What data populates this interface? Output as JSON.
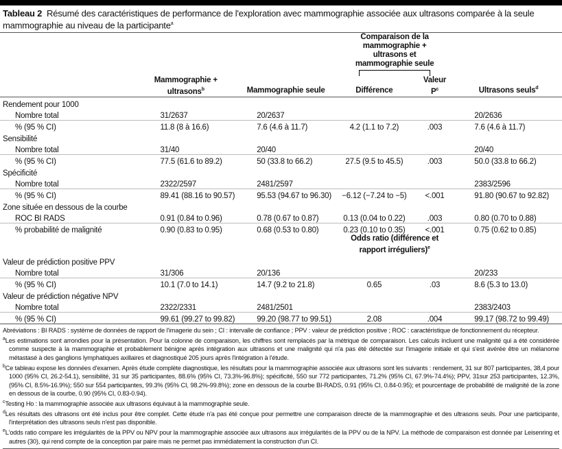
{
  "title": {
    "label": "Tableau 2",
    "text": "Résumé des caractéristiques de performance de l'exploration avec mammographie associée aux ultrasons comparée à la seule mammographie au niveau de la participante",
    "sup": "a"
  },
  "header": {
    "group": "Comparaison de la mammographie + ultrasons et mammographie seule",
    "col1": "Mammographie + ultrasons",
    "col1_sup": "b",
    "col2": "Mammographie seule",
    "col3": "Différence",
    "col4": "Valeur P",
    "col4_sup": "c",
    "col5": "Ultrasons seuls",
    "col5_sup": "d"
  },
  "sections": [
    {
      "title": "Rendement pour 1000",
      "rows": [
        {
          "label": "Nombre total",
          "v": [
            "31/2637",
            "20/2637",
            "",
            "",
            "20/2636"
          ]
        },
        {
          "label": "% (95 % CI)",
          "v": [
            "11.8 (8 à 16.6)",
            "7.6 (4.6 à 11.7)",
            "4.2 (1.1 to 7.2)",
            ".003",
            "7.6 (4.6 à 11.7)"
          ]
        }
      ]
    },
    {
      "title": "Sensibilité",
      "rows": [
        {
          "label": "Nombre total",
          "v": [
            "31/40",
            "20/40",
            "",
            "",
            "20/40"
          ]
        },
        {
          "label": "% (95 % CI)",
          "v": [
            "77.5 (61.6 to 89.2)",
            "50 (33.8 to 66.2)",
            "27.5 (9.5 to 45.5)",
            ".003",
            "50.0 (33.8 to 66.2)"
          ]
        }
      ]
    },
    {
      "title": "Spécificité",
      "rows": [
        {
          "label": "Nombre total",
          "v": [
            "2322/2597",
            "2481/2597",
            "",
            "",
            "2383/2596"
          ]
        },
        {
          "label": "% (95 % CI)",
          "v": [
            "89.41 (88.16 to 90.57)",
            "95.53 (94.67 to 96.30)",
            "−6.12 (−7.24 to −5)",
            "<.001",
            "91.80 (90.67 to 92.82)"
          ]
        }
      ]
    },
    {
      "title": "Zone située en dessous de la courbe",
      "rows": [
        {
          "label": "ROC BI RADS",
          "v": [
            "0.91 (0.84 to 0.96)",
            "0.78 (0.67 to 0.87)",
            "0.13 (0.04 to 0.22)",
            ".003",
            "0.80 (0.70 to 0.88)"
          ]
        },
        {
          "label": "% probabilité de malignité",
          "v": [
            "0.90 (0.83 to 0.95)",
            "0.68 (0.53 to 0.80)",
            "0.23 (0.10 to 0.35)",
            "<.001",
            "0.75 (0.62 to 0.85)"
          ]
        }
      ]
    }
  ],
  "odds_header": "Odds ratio (différence et rapport irréguliers)",
  "odds_sup": "e",
  "sections2": [
    {
      "title": "Valeur de prédiction positive PPV",
      "rows": [
        {
          "label": "Nombre total",
          "v": [
            "31/306",
            "20/136",
            "",
            "",
            "20/233"
          ]
        },
        {
          "label": "% (95 % CI)",
          "v": [
            "10.1 (7.0 to 14.1)",
            "14.7 (9.2 to 21.8)",
            "0.65",
            ".03",
            "8.6 (5.3 to 13.0)"
          ]
        }
      ]
    },
    {
      "title": "Valeur de prédiction négative NPV",
      "rows": [
        {
          "label": "Nombre total",
          "v": [
            "2322/2331",
            "2481/2501",
            "",
            "",
            "2383/2403"
          ]
        },
        {
          "label": "% (95 % CI)",
          "v": [
            "99.61 (99.27 to 99.82)",
            "99.20 (98.77 to 99.51)",
            "2.08",
            ".004",
            "99.17 (98.72 to 99.49)"
          ]
        }
      ]
    }
  ],
  "notes": {
    "abbr": "Abréviations : BI RADS : système de données de rapport de l'imagerie du sein ; CI : intervalle de confiance ; PPV : valeur de prédiction positive ; ROC : caractéristique de fonctionnement du récepteur.",
    "a": "Les estimations sont arrondies pour la présentation. Pour la colonne de comparaison, les chiffres sont remplacés par la métrique de comparaison. Les calculs incluent une malignité qui a été considérée comme suspecte à la mammographie et probablement bénigne après intégration aux ultrasons et une malignité qui n'a pas été détectée sur l'imagerie initiale et qui s'est avérée être un mélanome métastasé à des ganglions lymphatiques axillaires et diagnostiqué 205 jours après l'intégration à l'étude.",
    "b": "Ce tableau expose les données d'examen. Après étude complète diagnostique, les résultats pour la mammographie associée aux ultrasons sont les suivants : rendement, 31 sur 807 participantes, 38,4 pour 1000 (95% CI, 26.2-54.1), sensibilité, 31 sur 35 participantes, 88.6% (95% CI, 73.3%-96.8%); spécificité, 550 sur 772 participantes, 71.2% (95% CI, 67.9%-74.4%); PPV, 31sur 253 participantes, 12.3%, (95% CI, 8.5%-16.9%); 550 sur 554 participantes, 99.3% (95% CI, 98.2%-99.8%); zone en dessous de la courbe BI-RADS, 0.91 (95% CI, 0.84-0.95); et pourcentage de probabilité de malignité de la zone en dessous de la courbe, 0.90 (95% CI, 0.83-0.94).",
    "c": "Testing Ho : la mammographie associée aux ultrasons équivaut à la mammographie seule.",
    "d": "Les résultats des ultrasons ont été inclus pour être complet. Cette étude n'a pas été conçue pour permettre une comparaison directe de la mammographie et des ultrasons seuls. Pour une participante, l'interprétation des ultrasons seuls n'est pas disponible.",
    "e": "L'odds ratio compare les irrégularités de la PPV ou NPV pour la mammographie associée aux ultrasons aux irrégularités de la PPV ou de la NPV. La méthode de comparaison est donnée par Leisenring et autres (30), qui rend compte de la conception par paire mais ne permet pas immédiatement la construction d'un CI."
  }
}
